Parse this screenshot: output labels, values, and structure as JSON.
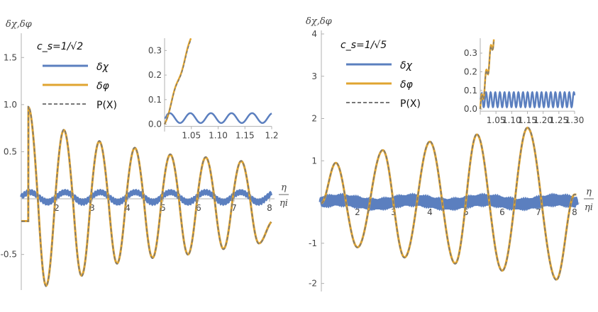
{
  "colors": {
    "delta_chi": "#5b7fbf",
    "delta_phi": "#e0a430",
    "px": "#777777",
    "axis": "#b0b0b0",
    "text": "#444444"
  },
  "chart_data": [
    {
      "type": "line",
      "annotation": "c_s=1/√2",
      "ylabel": "δχ,δφ",
      "xlabel_num": "η",
      "xlabel_den": "ηi",
      "xlim": [
        1,
        8.1
      ],
      "ylim": [
        -0.82,
        1.72
      ],
      "x_ticks": [
        "2",
        "3",
        "4",
        "5",
        "6",
        "7",
        "8"
      ],
      "y_ticks": [
        "-0.5",
        "0.5",
        "1.0",
        "1.5"
      ],
      "legend": [
        "δχ",
        "δφ",
        "P(X)"
      ],
      "series": [
        {
          "name": "δχ",
          "amplitude": 0.05,
          "offset": 0.02,
          "period": 0.99,
          "ripple": 0.02
        },
        {
          "name": "δφ",
          "peaks": [
            [
              1.2,
              0.97
            ],
            [
              1.7,
              -0.78
            ],
            [
              2.2,
              0.73
            ],
            [
              2.7,
              -0.69
            ],
            [
              3.2,
              0.61
            ],
            [
              3.7,
              -0.58
            ],
            [
              4.2,
              0.54
            ],
            [
              4.7,
              -0.53
            ],
            [
              5.2,
              0.47
            ],
            [
              5.7,
              -0.5
            ],
            [
              6.2,
              0.44
            ],
            [
              6.7,
              -0.45
            ],
            [
              7.2,
              0.4
            ],
            [
              7.7,
              -0.4
            ],
            [
              8.1,
              -0.2
            ]
          ]
        },
        {
          "name": "P(X)"
        }
      ],
      "inset": {
        "xlim": [
          1.0,
          1.2
        ],
        "ylim": [
          -0.03,
          0.35
        ],
        "x_ticks": [
          "1.05",
          "1.10",
          "1.15",
          "1.2"
        ],
        "y_ticks": [
          "0.0",
          "0.1",
          "0.2",
          "0.3"
        ]
      }
    },
    {
      "type": "line",
      "annotation": "c_s=1/√5",
      "ylabel": "δχ,δφ",
      "xlabel_num": "η",
      "xlabel_den": "ηi",
      "xlim": [
        1,
        8.1
      ],
      "ylim": [
        -2.2,
        4.0
      ],
      "x_ticks": [
        "2",
        "3",
        "4",
        "5",
        "6",
        "7",
        "8"
      ],
      "y_ticks": [
        "-2",
        "-1",
        "1",
        "2",
        "3",
        "4"
      ],
      "legend": [
        "δχ",
        "δφ",
        "P(X)"
      ],
      "series": [
        {
          "name": "δχ",
          "amplitude": 0.05,
          "offset": 0.02,
          "period": 2.0,
          "ripple": 0.07
        },
        {
          "name": "δφ",
          "peaks": [
            [
              1.0,
              0.0
            ],
            [
              1.4,
              0.95
            ],
            [
              2.0,
              -1.1
            ],
            [
              2.7,
              1.25
            ],
            [
              3.3,
              -1.35
            ],
            [
              4.0,
              1.45
            ],
            [
              4.7,
              -1.5
            ],
            [
              5.3,
              1.62
            ],
            [
              6.0,
              -1.68
            ],
            [
              6.7,
              1.78
            ],
            [
              7.5,
              -1.9
            ],
            [
              8.0,
              0.2
            ]
          ]
        },
        {
          "name": "P(X)"
        }
      ],
      "inset": {
        "xlim": [
          1.0,
          1.3
        ],
        "ylim": [
          -0.03,
          0.38
        ],
        "x_ticks": [
          "1.05",
          "1.10",
          "1.15",
          "1.20",
          "1.25",
          "1.30"
        ],
        "y_ticks": [
          "0.0",
          "0.1",
          "0.2",
          "0.3"
        ]
      }
    }
  ]
}
